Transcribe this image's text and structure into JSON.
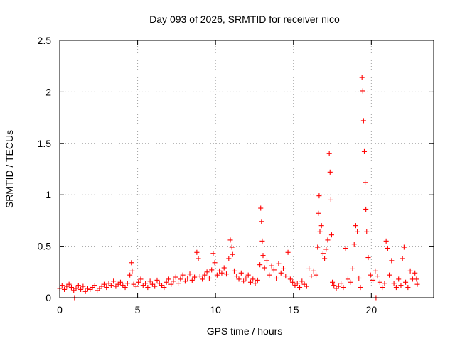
{
  "chart_data": {
    "type": "scatter",
    "title": "Day 093 of 2026, SRMTID for receiver nico",
    "xlabel": "GPS time / hours",
    "ylabel": "SRMTID / TECUs",
    "xlim": [
      0,
      24
    ],
    "ylim": [
      0,
      2.5
    ],
    "xticks": [
      0,
      5,
      10,
      15,
      20
    ],
    "xtick_labels": [
      "0",
      "5",
      "10",
      "15",
      "20"
    ],
    "yticks": [
      0,
      0.5,
      1,
      1.5,
      2,
      2.5
    ],
    "ytick_labels": [
      "0",
      "0.5",
      "1",
      "1.5",
      "2",
      "2.5"
    ],
    "grid": true,
    "marker": "+",
    "series_color": "#ff0000",
    "series": [
      {
        "name": "SRMTID",
        "x": [
          0.0,
          0.15,
          0.3,
          0.45,
          0.6,
          0.75,
          0.9,
          1.05,
          1.2,
          1.35,
          1.5,
          1.65,
          1.8,
          1.95,
          2.1,
          2.25,
          2.4,
          2.55,
          2.7,
          2.85,
          3.0,
          3.15,
          3.3,
          3.45,
          3.6,
          3.75,
          3.9,
          4.05,
          4.2,
          4.35,
          4.5,
          4.6,
          4.65,
          4.75,
          4.9,
          5.05,
          5.2,
          5.35,
          5.5,
          5.65,
          5.8,
          5.95,
          6.1,
          6.25,
          6.4,
          6.55,
          6.7,
          6.85,
          7.0,
          7.15,
          7.3,
          7.45,
          7.6,
          7.75,
          7.9,
          8.05,
          8.2,
          8.35,
          8.5,
          8.65,
          8.8,
          8.9,
          9.0,
          9.15,
          9.3,
          9.45,
          9.6,
          9.75,
          9.85,
          9.95,
          10.1,
          10.25,
          10.4,
          10.55,
          10.7,
          10.85,
          10.95,
          11.05,
          11.1,
          11.2,
          11.35,
          11.5,
          11.65,
          11.8,
          11.95,
          12.1,
          12.25,
          12.4,
          12.55,
          12.7,
          12.85,
          12.9,
          12.95,
          13.0,
          13.05,
          13.15,
          13.3,
          13.45,
          13.6,
          13.75,
          13.9,
          14.05,
          14.2,
          14.35,
          14.5,
          14.65,
          14.8,
          14.95,
          15.1,
          15.25,
          15.4,
          15.55,
          15.7,
          15.85,
          16.0,
          16.15,
          16.3,
          16.45,
          16.55,
          16.6,
          16.65,
          16.7,
          16.8,
          16.9,
          17.0,
          17.1,
          17.2,
          17.3,
          17.35,
          17.4,
          17.45,
          17.5,
          17.6,
          17.75,
          17.9,
          18.05,
          18.2,
          18.35,
          18.5,
          18.65,
          18.8,
          18.9,
          19.0,
          19.1,
          19.2,
          19.3,
          19.4,
          19.45,
          19.5,
          19.55,
          19.6,
          19.65,
          19.7,
          19.8,
          19.95,
          20.1,
          20.25,
          20.4,
          20.55,
          20.7,
          20.85,
          20.95,
          21.05,
          21.15,
          21.3,
          21.45,
          21.6,
          21.75,
          21.9,
          22.0,
          22.1,
          22.2,
          22.35,
          22.5,
          22.65,
          22.8,
          22.9,
          22.95,
          0.95,
          20.3
        ],
        "y": [
          0.09,
          0.12,
          0.08,
          0.11,
          0.13,
          0.1,
          0.07,
          0.09,
          0.12,
          0.08,
          0.11,
          0.06,
          0.09,
          0.08,
          0.1,
          0.12,
          0.07,
          0.09,
          0.11,
          0.13,
          0.1,
          0.14,
          0.12,
          0.16,
          0.11,
          0.13,
          0.15,
          0.12,
          0.1,
          0.14,
          0.22,
          0.34,
          0.26,
          0.13,
          0.11,
          0.15,
          0.18,
          0.12,
          0.14,
          0.1,
          0.16,
          0.13,
          0.11,
          0.17,
          0.14,
          0.12,
          0.1,
          0.15,
          0.18,
          0.13,
          0.16,
          0.2,
          0.14,
          0.18,
          0.22,
          0.16,
          0.19,
          0.23,
          0.17,
          0.2,
          0.44,
          0.38,
          0.21,
          0.18,
          0.22,
          0.25,
          0.19,
          0.27,
          0.43,
          0.34,
          0.22,
          0.26,
          0.24,
          0.29,
          0.23,
          0.38,
          0.56,
          0.49,
          0.42,
          0.26,
          0.21,
          0.18,
          0.24,
          0.16,
          0.19,
          0.22,
          0.15,
          0.18,
          0.14,
          0.17,
          0.32,
          0.87,
          0.74,
          0.55,
          0.41,
          0.29,
          0.36,
          0.22,
          0.31,
          0.27,
          0.19,
          0.33,
          0.24,
          0.28,
          0.21,
          0.44,
          0.18,
          0.15,
          0.12,
          0.14,
          0.1,
          0.16,
          0.13,
          0.11,
          0.28,
          0.21,
          0.26,
          0.22,
          0.49,
          0.82,
          0.99,
          0.64,
          0.7,
          0.43,
          0.38,
          0.47,
          0.56,
          1.4,
          1.22,
          0.95,
          0.61,
          0.15,
          0.12,
          0.09,
          0.11,
          0.14,
          0.1,
          0.48,
          0.18,
          0.15,
          0.28,
          0.52,
          0.7,
          0.64,
          0.19,
          0.1,
          2.14,
          2.01,
          1.72,
          1.42,
          1.12,
          0.86,
          0.64,
          0.39,
          0.22,
          0.17,
          0.26,
          0.21,
          0.15,
          0.1,
          0.14,
          0.55,
          0.48,
          0.22,
          0.36,
          0.14,
          0.1,
          0.18,
          0.12,
          0.38,
          0.49,
          0.15,
          0.1,
          0.26,
          0.18,
          0.24,
          0.18,
          0.13,
          0.0,
          0.0
        ]
      }
    ]
  }
}
